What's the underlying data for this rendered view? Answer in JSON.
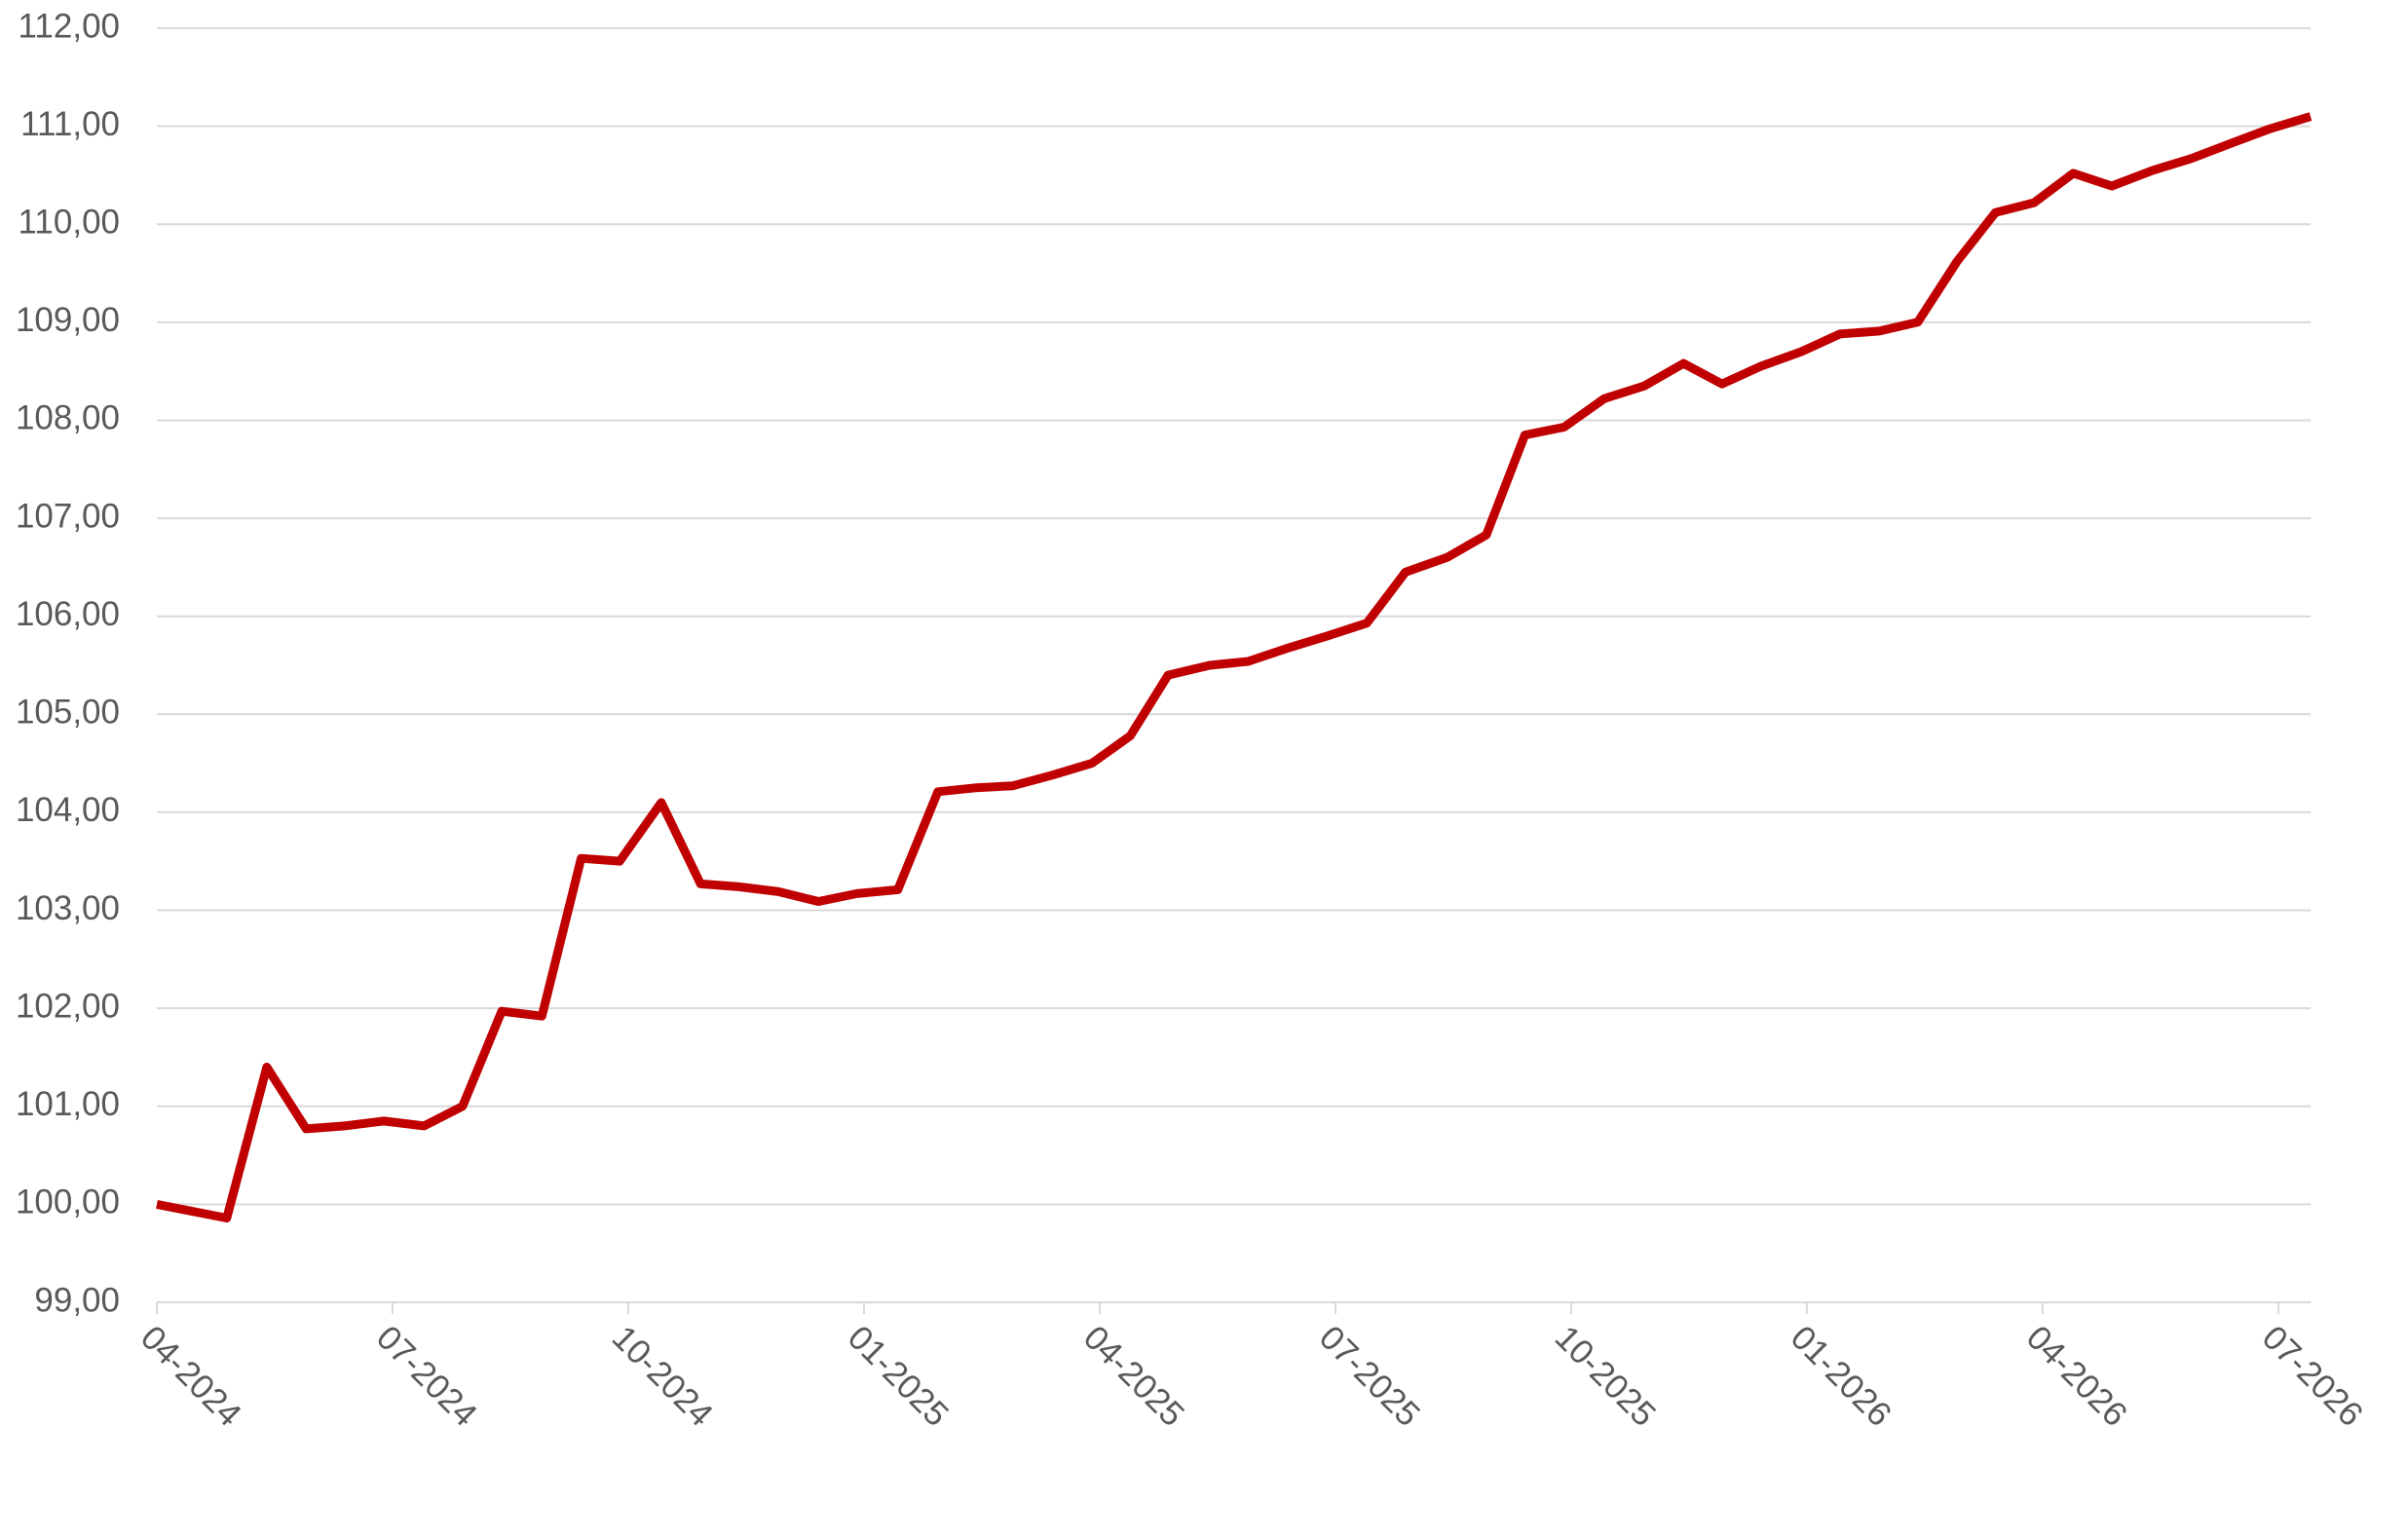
{
  "chart_data": {
    "type": "line",
    "x": [
      0,
      0.89,
      1.4,
      1.9,
      2.39,
      2.89,
      3.4,
      3.89,
      4.39,
      4.9,
      5.4,
      5.89,
      6.42,
      6.92,
      7.41,
      7.91,
      8.42,
      8.91,
      9.43,
      9.94,
      10.42,
      10.89,
      11.4,
      11.9,
      12.39,
      12.87,
      13.4,
      13.89,
      14.41,
      14.9,
      15.4,
      15.89,
      16.42,
      16.92,
      17.41,
      17.91,
      18.42,
      18.93,
      19.43,
      19.92,
      20.41,
      20.93,
      21.42,
      21.92,
      22.41,
      22.91,
      23.4,
      23.89,
      24.39,
      24.88,
      25.4,
      25.89,
      26.38,
      26.88,
      27.41
    ],
    "series": [
      {
        "color": "#c00000",
        "values": [
          100.0,
          99.86,
          101.4,
          100.77,
          100.8,
          100.85,
          100.8,
          101.0,
          101.97,
          101.92,
          103.53,
          103.5,
          104.1,
          103.27,
          103.24,
          103.19,
          103.09,
          103.17,
          103.21,
          104.21,
          104.25,
          104.27,
          104.38,
          104.5,
          104.78,
          105.4,
          105.5,
          105.54,
          105.68,
          105.8,
          105.93,
          106.45,
          106.6,
          106.83,
          107.85,
          107.93,
          108.22,
          108.35,
          108.58,
          108.37,
          108.55,
          108.7,
          108.88,
          108.91,
          109.0,
          109.62,
          110.12,
          110.22,
          110.52,
          110.39,
          110.55,
          110.67,
          110.82,
          110.97,
          111.1
        ]
      }
    ],
    "xlim": [
      0,
      27.41
    ],
    "xticks": [
      {
        "value": 0,
        "label": "04-2024"
      },
      {
        "value": 3,
        "label": "07-2024"
      },
      {
        "value": 6,
        "label": "10-2024"
      },
      {
        "value": 9,
        "label": "01-2025"
      },
      {
        "value": 12,
        "label": "04-2025"
      },
      {
        "value": 15,
        "label": "07-2025"
      },
      {
        "value": 18,
        "label": "10-2025"
      },
      {
        "value": 21,
        "label": "01-2026"
      },
      {
        "value": 24,
        "label": "04-2026"
      },
      {
        "value": 27,
        "label": "07-2026"
      }
    ],
    "ylim": [
      99,
      112
    ],
    "yticks": [
      {
        "value": 99,
        "label": "99,00"
      },
      {
        "value": 100,
        "label": "100,00"
      },
      {
        "value": 101,
        "label": "101,00"
      },
      {
        "value": 102,
        "label": "102,00"
      },
      {
        "value": 103,
        "label": "103,00"
      },
      {
        "value": 104,
        "label": "104,00"
      },
      {
        "value": 105,
        "label": "105,00"
      },
      {
        "value": 106,
        "label": "106,00"
      },
      {
        "value": 107,
        "label": "107,00"
      },
      {
        "value": 108,
        "label": "108,00"
      },
      {
        "value": 109,
        "label": "109,00"
      },
      {
        "value": 110,
        "label": "110,00"
      },
      {
        "value": 111,
        "label": "111,00"
      },
      {
        "value": 112,
        "label": "112,00"
      }
    ],
    "grid": true
  }
}
